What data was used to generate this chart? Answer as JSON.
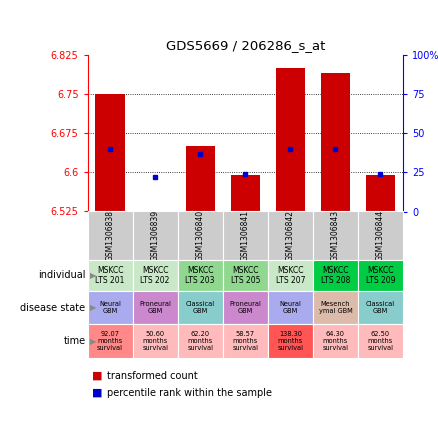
{
  "title": "GDS5669 / 206286_s_at",
  "samples": [
    "GSM1306838",
    "GSM1306839",
    "GSM1306840",
    "GSM1306841",
    "GSM1306842",
    "GSM1306843",
    "GSM1306844"
  ],
  "transformed_count": [
    6.75,
    6.525,
    6.65,
    6.595,
    6.8,
    6.79,
    6.595
  ],
  "percentile_rank": [
    40,
    22,
    37,
    24,
    40,
    40,
    24
  ],
  "ylim": [
    6.525,
    6.825
  ],
  "ylim_right": [
    0,
    100
  ],
  "yticks_left": [
    6.525,
    6.6,
    6.675,
    6.75,
    6.825
  ],
  "yticks_right": [
    0,
    25,
    50,
    75,
    100
  ],
  "individual_labels": [
    "MSKCC\nLTS 201",
    "MSKCC\nLTS 202",
    "MSKCC\nLTS 203",
    "MSKCC\nLTS 205",
    "MSKCC\nLTS 207",
    "MSKCC\nLTS 208",
    "MSKCC\nLTS 209"
  ],
  "individual_colors": [
    "#c8e8c8",
    "#c8e8c8",
    "#90d890",
    "#90d890",
    "#c8e8c8",
    "#00cc44",
    "#00cc44"
  ],
  "disease_state_labels": [
    "Neural\nGBM",
    "Proneural\nGBM",
    "Classical\nGBM",
    "Proneural\nGBM",
    "Neural\nGBM",
    "Mesench\nymal GBM",
    "Classical\nGBM"
  ],
  "disease_state_colors": [
    "#aaaaee",
    "#cc88cc",
    "#88cccc",
    "#cc88cc",
    "#aaaaee",
    "#ddbbaa",
    "#88cccc"
  ],
  "time_labels": [
    "92.07\nmonths\nsurvival",
    "50.60\nmonths\nsurvival",
    "62.20\nmonths\nsurvival",
    "58.57\nmonths\nsurvival",
    "138.30\nmonths\nsurvival",
    "64.30\nmonths\nsurvival",
    "62.50\nmonths\nsurvival"
  ],
  "time_colors": [
    "#ff8888",
    "#ffbbbb",
    "#ffbbbb",
    "#ffbbbb",
    "#ff5555",
    "#ffbbbb",
    "#ffbbbb"
  ],
  "bar_color": "#cc0000",
  "dot_color": "#0000cc",
  "background_color": "#ffffff",
  "sample_bg_color": "#cccccc",
  "cell_border_color": "#ffffff",
  "legend_bar_color": "#cc0000",
  "legend_dot_color": "#0000cc"
}
